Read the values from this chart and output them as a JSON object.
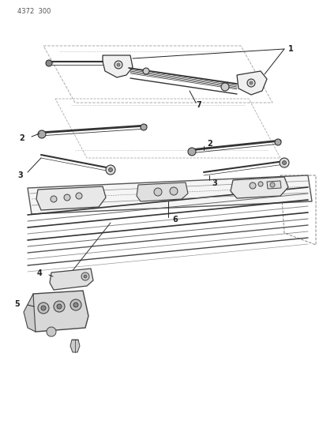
{
  "bg_color": "#ffffff",
  "line_color": "#222222",
  "part_color": "#444444",
  "label_color": "#222222",
  "header_text": "4372  300",
  "fig_width": 4.1,
  "fig_height": 5.33,
  "dpi": 100
}
